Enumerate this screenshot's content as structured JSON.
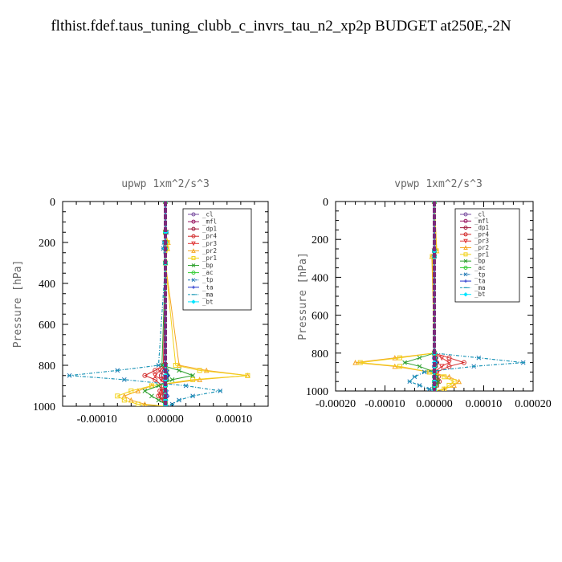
{
  "page": {
    "title": "flthist.fdef.taus_tuning_clubb_c_invrs_tau_n2_xp2p  BUDGET at250E,-2N"
  },
  "legend_entries": [
    {
      "label": "_cl",
      "color": "#7a4fa0",
      "marker": "circle"
    },
    {
      "label": "_mfl",
      "color": "#9a1a64",
      "marker": "circle"
    },
    {
      "label": "_dp1",
      "color": "#a01a3c",
      "marker": "circle"
    },
    {
      "label": "_pr4",
      "color": "#d22a2a",
      "marker": "circle"
    },
    {
      "label": "_pr3",
      "color": "#e03838",
      "marker": "triangle-down"
    },
    {
      "label": "_pr2",
      "color": "#f5a623",
      "marker": "triangle-up"
    },
    {
      "label": "_pr1",
      "color": "#f2d21a",
      "marker": "square"
    },
    {
      "label": "_bp",
      "color": "#2ca02c",
      "marker": "x"
    },
    {
      "label": "_ac",
      "color": "#33cc33",
      "marker": "circle"
    },
    {
      "label": "_tp",
      "color": "#1f77b4",
      "marker": "x"
    },
    {
      "label": "_ta",
      "color": "#2233cc",
      "marker": "plus"
    },
    {
      "label": "_ma",
      "color": "#1f9bb8",
      "marker": "dash"
    },
    {
      "label": "_bt",
      "color": "#00e5ff",
      "marker": "diamond"
    }
  ],
  "chart_data": [
    {
      "type": "line",
      "title": "upwp  1xm^2/s^3",
      "ylabel": "Pressure [hPa]",
      "xlabel": "",
      "xlim": [
        -0.00015,
        0.00015
      ],
      "ylim": [
        1000,
        0
      ],
      "y_inverted": true,
      "xticks": [
        "-0.00010",
        "0.00000",
        "0.00010"
      ],
      "xtick_values": [
        -0.0001,
        0,
        0.0001
      ],
      "yticks": [
        "0",
        "200",
        "400",
        "600",
        "800",
        "1000"
      ],
      "ytick_values": [
        0,
        200,
        400,
        600,
        800,
        1000
      ],
      "legend_placement": "top-right",
      "grid": false,
      "y": [
        0,
        150,
        200,
        230,
        300,
        800,
        825,
        850,
        870,
        900,
        925,
        950,
        970,
        990,
        1000
      ],
      "series": [
        {
          "name": "_cl",
          "values": [
            0,
            0,
            0,
            0,
            0,
            0,
            2e-06,
            3e-06,
            2e-06,
            0,
            0,
            2e-06,
            0,
            0,
            0
          ]
        },
        {
          "name": "_mfl",
          "values": [
            0,
            0,
            0,
            0,
            0,
            0,
            0,
            2e-06,
            0,
            0,
            0,
            0,
            0,
            0,
            0
          ]
        },
        {
          "name": "_dp1",
          "values": [
            0,
            0,
            0,
            0,
            0,
            0,
            -4e-06,
            -6e-06,
            -3e-06,
            0,
            -3e-06,
            -4e-06,
            -2e-06,
            0,
            0
          ]
        },
        {
          "name": "_pr4",
          "values": [
            0,
            0,
            0,
            0,
            0,
            -3e-06,
            -1.5e-05,
            -3e-05,
            -1.5e-05,
            -5e-06,
            -8e-06,
            -1e-05,
            -5e-06,
            0,
            0
          ]
        },
        {
          "name": "_pr3",
          "values": [
            0,
            0,
            0,
            0,
            0,
            0,
            -8e-06,
            -1.5e-05,
            -6e-06,
            0,
            -5e-06,
            -8e-06,
            -3e-06,
            0,
            0
          ]
        },
        {
          "name": "_pr2",
          "values": [
            0,
            0,
            4e-06,
            3e-06,
            0,
            2e-05,
            6e-05,
            0.00012,
            5e-05,
            -2e-05,
            -4e-05,
            -6e-05,
            -5e-05,
            -3e-05,
            0
          ]
        },
        {
          "name": "_pr1",
          "values": [
            0,
            0,
            3e-06,
            2e-06,
            0,
            1.5e-05,
            5e-05,
            0.00012,
            4e-05,
            -2e-05,
            -5e-05,
            -7e-05,
            -6e-05,
            -4e-05,
            0
          ]
        },
        {
          "name": "_bp",
          "values": [
            0,
            0,
            0,
            0,
            0,
            -5e-06,
            2e-05,
            4e-05,
            1e-05,
            -1e-05,
            -3e-05,
            -2e-05,
            -1e-05,
            0,
            0
          ]
        },
        {
          "name": "_ac",
          "values": [
            0,
            0,
            0,
            0,
            0,
            0,
            2e-06,
            3e-06,
            1e-06,
            0,
            0,
            0,
            0,
            0,
            0
          ]
        },
        {
          "name": "_tp",
          "values": [
            0,
            2e-06,
            -2e-06,
            -3e-06,
            0,
            -1e-05,
            -7e-05,
            -0.00014,
            -6e-05,
            3e-05,
            8e-05,
            4e-05,
            2e-05,
            1e-05,
            0
          ]
        },
        {
          "name": "_ta",
          "values": [
            0,
            0,
            0,
            0,
            0,
            0,
            2e-06,
            4e-06,
            1e-06,
            0,
            2e-06,
            3e-06,
            1e-06,
            0,
            0
          ]
        },
        {
          "name": "_ma",
          "values": [
            0,
            2e-06,
            -2e-06,
            -3e-06,
            0,
            -1e-05,
            -7e-05,
            -0.00014,
            -6e-05,
            3e-05,
            8e-05,
            4e-05,
            2e-05,
            1e-05,
            0
          ]
        },
        {
          "name": "_bt",
          "values": [
            0,
            0,
            0,
            0,
            0,
            0,
            0,
            0,
            0,
            0,
            0,
            0,
            0,
            0,
            0
          ]
        }
      ]
    },
    {
      "type": "line",
      "title": "vpwp  1xm^2/s^3",
      "ylabel": "Pressure [hPa]",
      "xlabel": "",
      "xlim": [
        -0.0002,
        0.0002
      ],
      "ylim": [
        1000,
        0
      ],
      "y_inverted": true,
      "xticks": [
        "-0.00020",
        "-0.00010",
        "0.00000",
        "0.00010",
        "0.00020"
      ],
      "xtick_values": [
        -0.0002,
        -0.0001,
        0,
        0.0001,
        0.0002
      ],
      "yticks": [
        "0",
        "200",
        "400",
        "600",
        "800",
        "1000"
      ],
      "ytick_values": [
        0,
        200,
        400,
        600,
        800,
        1000
      ],
      "legend_placement": "top-right",
      "grid": false,
      "y": [
        0,
        260,
        290,
        800,
        825,
        850,
        870,
        900,
        925,
        950,
        970,
        990,
        1000
      ],
      "series": [
        {
          "name": "_cl",
          "values": [
            0,
            0,
            0,
            0,
            2e-06,
            3e-06,
            2e-06,
            0,
            0,
            0,
            0,
            0,
            0
          ]
        },
        {
          "name": "_mfl",
          "values": [
            0,
            0,
            0,
            0,
            0,
            2e-06,
            0,
            0,
            0,
            0,
            0,
            0,
            0
          ]
        },
        {
          "name": "_dp1",
          "values": [
            0,
            0,
            0,
            0,
            3e-06,
            5e-06,
            2e-06,
            0,
            0,
            0,
            0,
            0,
            0
          ]
        },
        {
          "name": "_pr4",
          "values": [
            0,
            0,
            0,
            0,
            3e-05,
            6e-05,
            3e-05,
            5e-06,
            8e-06,
            1e-05,
            5e-06,
            0,
            0
          ]
        },
        {
          "name": "_pr3",
          "values": [
            0,
            0,
            0,
            0,
            1.5e-05,
            3e-05,
            1.5e-05,
            0,
            5e-06,
            8e-06,
            3e-06,
            0,
            0
          ]
        },
        {
          "name": "_pr2",
          "values": [
            0,
            5e-06,
            -5e-06,
            0,
            -8e-05,
            -0.00016,
            -8e-05,
            -1e-05,
            3e-05,
            5e-05,
            4e-05,
            2e-05,
            0
          ]
        },
        {
          "name": "_pr1",
          "values": [
            0,
            4e-06,
            -4e-06,
            0,
            -7e-05,
            -0.00015,
            -7e-05,
            -1e-05,
            2e-05,
            4e-05,
            3e-05,
            2e-05,
            0
          ]
        },
        {
          "name": "_bp",
          "values": [
            0,
            0,
            0,
            0,
            -3e-05,
            -6e-05,
            -3e-05,
            0,
            5e-06,
            8e-06,
            5e-06,
            0,
            0
          ]
        },
        {
          "name": "_ac",
          "values": [
            0,
            0,
            0,
            0,
            1e-06,
            2e-06,
            1e-06,
            0,
            0,
            0,
            0,
            0,
            0
          ]
        },
        {
          "name": "_tp",
          "values": [
            0,
            0,
            0,
            0,
            9e-05,
            0.00018,
            8e-05,
            -2e-05,
            -4e-05,
            -5e-05,
            -3e-05,
            -1e-05,
            0
          ]
        },
        {
          "name": "_ta",
          "values": [
            0,
            0,
            0,
            0,
            2e-06,
            4e-06,
            1e-06,
            0,
            2e-06,
            3e-06,
            1e-06,
            0,
            0
          ]
        },
        {
          "name": "_ma",
          "values": [
            0,
            0,
            0,
            0,
            9e-05,
            0.00018,
            8e-05,
            -2e-05,
            -4e-05,
            -5e-05,
            -3e-05,
            -1e-05,
            0
          ]
        },
        {
          "name": "_bt",
          "values": [
            0,
            0,
            0,
            0,
            0,
            0,
            0,
            0,
            0,
            0,
            0,
            0,
            0
          ]
        }
      ]
    }
  ]
}
